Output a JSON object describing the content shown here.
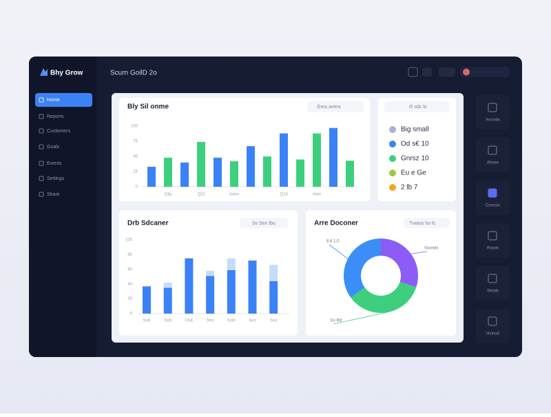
{
  "brand": "Bhy Grow",
  "header": {
    "title": "Scurn GoilD 2o"
  },
  "nav": [
    "Home",
    "Reports",
    "Customers",
    "Goals",
    "Events",
    "Settings",
    "Share"
  ],
  "top_chart": {
    "title": "Bly Sil onme",
    "button": "Gros avera",
    "ylim": [
      0,
      100
    ],
    "yticks": [
      0,
      25,
      50,
      75,
      100
    ],
    "categories": [
      null,
      "Qtly",
      null,
      "Q22",
      null,
      "A4nn",
      null,
      null,
      "Q18",
      null,
      "Anm",
      null,
      null
    ],
    "values": [
      33,
      48,
      40,
      74,
      48,
      42,
      67,
      50,
      88,
      45,
      88,
      97,
      43
    ],
    "colors": [
      "#3b82f6",
      "#3ecf7e",
      "#3b82f6",
      "#3ecf7e",
      "#3b82f6",
      "#3ecf7e",
      "#3b82f6",
      "#3ecf7e",
      "#3b82f6",
      "#3ecf7e",
      "#3ecf7e",
      "#3b82f6",
      "#3ecf7e"
    ]
  },
  "legend": {
    "button": "O sdc lo",
    "items": [
      {
        "label": "Big small",
        "color": "#a8b3cc"
      },
      {
        "label": "Od s€ 10",
        "color": "#3b82f6"
      },
      {
        "label": "Gnrsz 10",
        "color": "#3ecf7e"
      },
      {
        "label": "Eu e Ge",
        "color": "#9ccc3e"
      },
      {
        "label": "2 lb 7",
        "color": "#f5a623"
      }
    ]
  },
  "bottom_chart": {
    "title": "Drb Sdcaner",
    "button": "Sv Sen lbo",
    "ylim": [
      0,
      100
    ],
    "yticks": [
      0,
      20,
      40,
      60,
      80,
      100
    ],
    "categories": [
      "Sub",
      "Sob",
      "USE",
      "Sho",
      "Ssth",
      "Soo",
      "Sso"
    ],
    "base": [
      37,
      35,
      75,
      51,
      59,
      72,
      44
    ],
    "top": [
      0,
      7,
      0,
      7,
      16,
      0,
      22
    ],
    "base_color": "#3b82f6",
    "top_color": "#c6dcf8"
  },
  "donut": {
    "title": "Arre Doconer",
    "button": "Tvwiss ho fc",
    "values": [
      30,
      35,
      35
    ],
    "labels": [
      "Soonds",
      "Ev Rd",
      "8.6 1.0"
    ],
    "colors": [
      "#8b5cf6",
      "#3ecf7e",
      "#3b8ef6"
    ]
  },
  "rail": [
    "Arcrobs",
    "Ahose",
    "Corrcos",
    "Rovds",
    "Seods",
    "Hcinod"
  ]
}
